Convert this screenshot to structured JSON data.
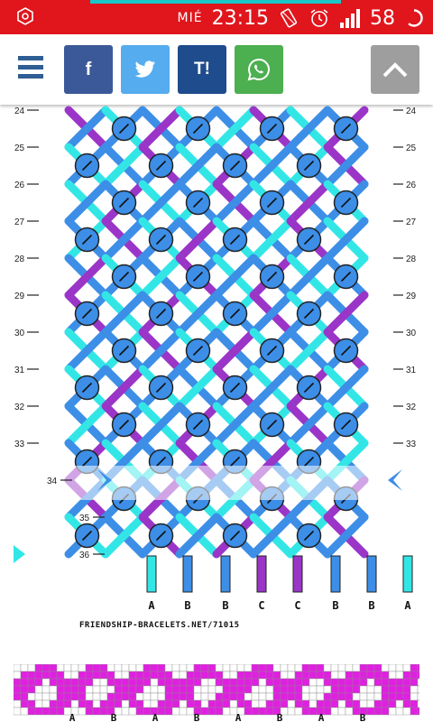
{
  "status_bar": {
    "day": "MIÉ",
    "time": "23:15",
    "battery": "58",
    "icons": [
      "target-icon",
      "vibrate-icon",
      "alarm-icon",
      "signal-icon",
      "battery-ring-icon"
    ]
  },
  "toolbar": {
    "menu_icon": "hamburger-icon",
    "facebook_label": "f",
    "tumblr_label": "T!",
    "scroll_top_icon": "chevron-up-icon"
  },
  "pattern": {
    "row_labels": [
      "24",
      "25",
      "26",
      "27",
      "28",
      "29",
      "30",
      "31",
      "32",
      "33",
      "34",
      "35",
      "36"
    ],
    "string_letters": [
      "A",
      "B",
      "B",
      "C",
      "C",
      "B",
      "B",
      "A"
    ],
    "credit": "FRIENDSHIP-BRACELETS.NET/71015",
    "preview_letters": [
      "A",
      "B",
      "A",
      "B",
      "A",
      "B",
      "A",
      "B"
    ],
    "colors": {
      "A": "#33e6e6",
      "B": "#3d8ee6",
      "C": "#9a35c8",
      "knot_outline": "#222222"
    }
  }
}
